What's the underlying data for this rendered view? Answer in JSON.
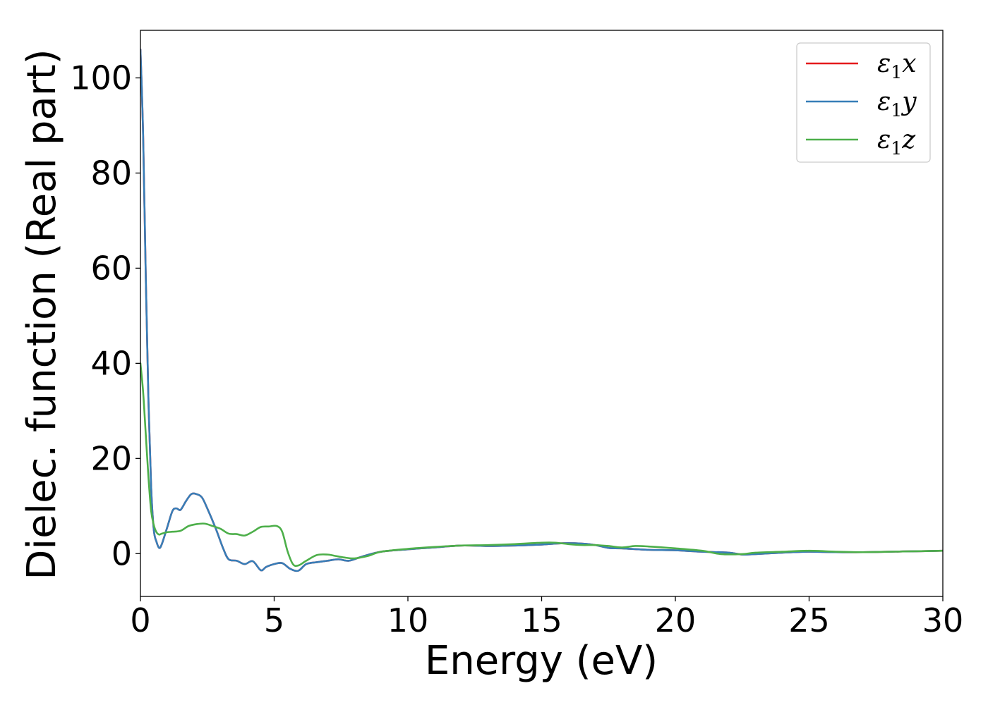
{
  "chart_data": {
    "type": "line",
    "title": "",
    "xlabel": "Energy (eV)",
    "ylabel": "Dielec. function (Real part)",
    "xlim": [
      0,
      30
    ],
    "ylim": [
      -9,
      110
    ],
    "xticks": [
      "0",
      "5",
      "10",
      "15",
      "20",
      "25",
      "30"
    ],
    "yticks": [
      "0",
      "20",
      "40",
      "60",
      "80",
      "100"
    ],
    "grid": false,
    "legend_position": "top-right",
    "series": [
      {
        "name": "ε1x",
        "legend": {
          "symbol": "ε",
          "sub": "1",
          "suffix": "x"
        },
        "color": "#e41a1c",
        "x": [
          0,
          0.1,
          0.2,
          0.3,
          0.4,
          0.5,
          0.6,
          0.7,
          0.8,
          1.0,
          1.2,
          1.35,
          1.5,
          1.7,
          1.9,
          2.1,
          2.3,
          2.5,
          2.8,
          3.1,
          3.3,
          3.6,
          3.9,
          4.2,
          4.5,
          4.7,
          5.0,
          5.3,
          5.6,
          5.9,
          6.2,
          6.6,
          7.0,
          7.4,
          7.8,
          8.3,
          9.0,
          10.0,
          11.0,
          12.0,
          13.0,
          14.0,
          15.0,
          15.5,
          16.0,
          16.5,
          17.0,
          17.5,
          18.0,
          19.0,
          20.0,
          21.0,
          22.0,
          22.5,
          23.0,
          24.0,
          25.0,
          26.0,
          27.0,
          28.0,
          29.0,
          30.0
        ],
        "y": [
          106,
          88,
          58,
          32,
          14,
          5,
          2.5,
          1.2,
          2,
          5.5,
          9,
          9.5,
          9.2,
          11,
          12.5,
          12.5,
          11.8,
          9.5,
          5.5,
          1,
          -1.2,
          -1.5,
          -2.2,
          -1.6,
          -3.5,
          -2.8,
          -2.2,
          -2,
          -3.2,
          -3.6,
          -2.2,
          -1.8,
          -1.5,
          -1.2,
          -1.5,
          -0.6,
          0.4,
          0.9,
          1.3,
          1.7,
          1.6,
          1.7,
          1.9,
          2.1,
          2.2,
          2.1,
          1.8,
          1.2,
          1.1,
          0.8,
          0.7,
          0.4,
          0.2,
          -0.2,
          -0.1,
          0.2,
          0.4,
          0.3,
          0.3,
          0.4,
          0.5,
          0.6
        ]
      },
      {
        "name": "ε1y",
        "legend": {
          "symbol": "ε",
          "sub": "1",
          "suffix": "y"
        },
        "color": "#377eb8",
        "x": [
          0,
          0.1,
          0.2,
          0.3,
          0.4,
          0.5,
          0.6,
          0.7,
          0.8,
          1.0,
          1.2,
          1.35,
          1.5,
          1.7,
          1.9,
          2.1,
          2.3,
          2.5,
          2.8,
          3.1,
          3.3,
          3.6,
          3.9,
          4.2,
          4.5,
          4.7,
          5.0,
          5.3,
          5.6,
          5.9,
          6.2,
          6.6,
          7.0,
          7.4,
          7.8,
          8.3,
          9.0,
          10.0,
          11.0,
          12.0,
          13.0,
          14.0,
          15.0,
          15.5,
          16.0,
          16.5,
          17.0,
          17.5,
          18.0,
          19.0,
          20.0,
          21.0,
          22.0,
          22.5,
          23.0,
          24.0,
          25.0,
          26.0,
          27.0,
          28.0,
          29.0,
          30.0
        ],
        "y": [
          106,
          88,
          58,
          32,
          14,
          5,
          2.5,
          1.2,
          2,
          5.5,
          9,
          9.5,
          9.2,
          11,
          12.5,
          12.5,
          11.8,
          9.5,
          5.5,
          1,
          -1.2,
          -1.5,
          -2.2,
          -1.6,
          -3.5,
          -2.8,
          -2.2,
          -2,
          -3.2,
          -3.6,
          -2.2,
          -1.8,
          -1.5,
          -1.2,
          -1.5,
          -0.6,
          0.4,
          0.9,
          1.3,
          1.7,
          1.6,
          1.7,
          1.9,
          2.1,
          2.2,
          2.1,
          1.8,
          1.2,
          1.1,
          0.8,
          0.7,
          0.4,
          0.2,
          -0.2,
          -0.1,
          0.2,
          0.4,
          0.3,
          0.3,
          0.4,
          0.5,
          0.6
        ]
      },
      {
        "name": "ε1z",
        "legend": {
          "symbol": "ε",
          "sub": "1",
          "suffix": "z"
        },
        "color": "#4daf4a",
        "x": [
          0,
          0.1,
          0.2,
          0.3,
          0.4,
          0.5,
          0.6,
          0.7,
          0.8,
          1.0,
          1.2,
          1.5,
          1.8,
          2.1,
          2.4,
          2.7,
          3.0,
          3.3,
          3.6,
          3.9,
          4.2,
          4.5,
          4.8,
          5.1,
          5.3,
          5.5,
          5.7,
          5.9,
          6.2,
          6.6,
          7.0,
          7.3,
          7.6,
          8.0,
          8.5,
          9.0,
          10.0,
          11.0,
          12.0,
          13.0,
          14.0,
          15.0,
          15.5,
          16.0,
          16.5,
          17.0,
          17.5,
          18.0,
          18.5,
          19.0,
          20.0,
          21.0,
          21.7,
          22.5,
          23.0,
          24.0,
          25.0,
          26.0,
          27.0,
          28.0,
          29.0,
          30.0
        ],
        "y": [
          40,
          34,
          25,
          16,
          9,
          6,
          4.5,
          4,
          4.2,
          4.5,
          4.6,
          4.8,
          5.8,
          6.2,
          6.3,
          5.8,
          5.2,
          4.2,
          4.1,
          3.8,
          4.6,
          5.6,
          5.7,
          5.8,
          4.6,
          0.5,
          -2.2,
          -2.5,
          -1.5,
          -0.3,
          -0.2,
          -0.5,
          -0.8,
          -1,
          -0.5,
          0.4,
          1.0,
          1.4,
          1.7,
          1.8,
          2.0,
          2.3,
          2.3,
          2.0,
          1.8,
          1.8,
          1.6,
          1.3,
          1.6,
          1.5,
          1.1,
          0.6,
          -0.1,
          -0.1,
          0.2,
          0.4,
          0.6,
          0.4,
          0.3,
          0.4,
          0.5,
          0.6
        ]
      }
    ]
  }
}
